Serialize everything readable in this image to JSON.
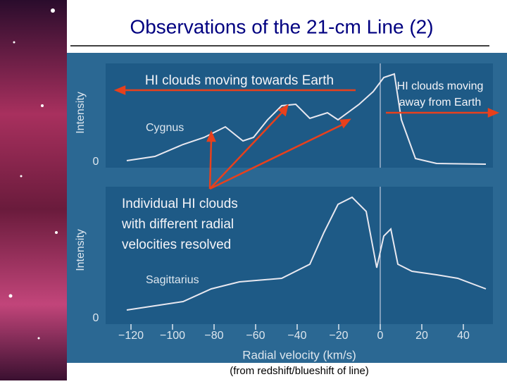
{
  "title": "Observations of the 21-cm Line (2)",
  "annotations": {
    "towards": "HI clouds moving towards Earth",
    "away_1": "HI clouds moving",
    "away_2": "away from Earth",
    "resolved": [
      "Individual HI clouds",
      "with different radial",
      "velocities resolved"
    ]
  },
  "panels": [
    {
      "label": "Cygnus",
      "y_axis": "Intensity",
      "zero": "0"
    },
    {
      "label": "Sagittarius",
      "y_axis": "Intensity",
      "zero": "0"
    }
  ],
  "x_axis": {
    "label": "Radial velocity (km/s)",
    "ticks": [
      {
        "value": -120,
        "label": "−120"
      },
      {
        "value": -100,
        "label": "−100"
      },
      {
        "value": -80,
        "label": "−80"
      },
      {
        "value": -60,
        "label": "−60"
      },
      {
        "value": -40,
        "label": "−40"
      },
      {
        "value": -20,
        "label": "−20"
      },
      0,
      20,
      40
    ]
  },
  "caption": "(from redshift/blueshift of line)"
}
